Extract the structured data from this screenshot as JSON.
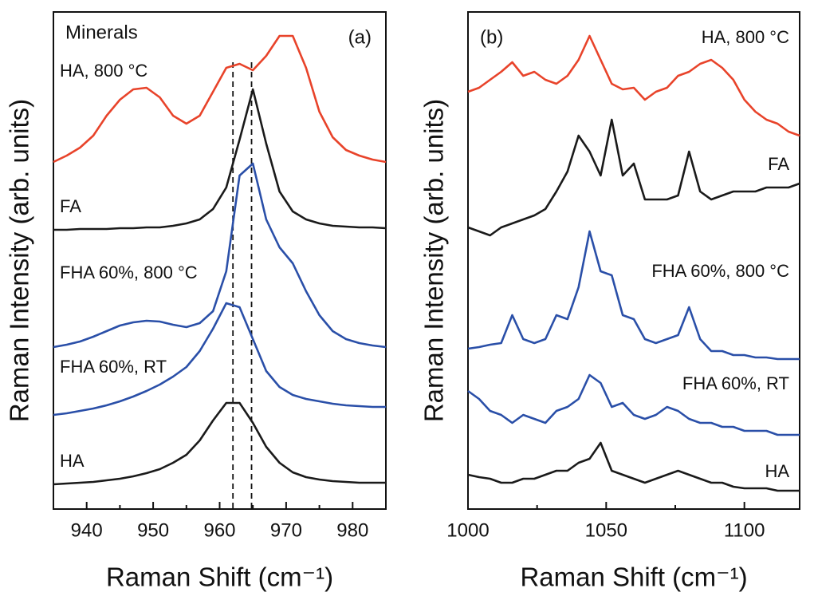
{
  "chart_data": [
    {
      "type": "line",
      "annotations": [
        "Minerals",
        "(a)"
      ],
      "x_label": "Raman Shift (cm⁻¹)",
      "y_label": "Raman Intensity (arb. units)",
      "x": [
        935,
        937,
        939,
        941,
        943,
        945,
        947,
        949,
        951,
        953,
        955,
        957,
        959,
        961,
        963,
        965,
        967,
        969,
        971,
        973,
        975,
        977,
        979,
        981,
        983,
        985
      ],
      "xlim": [
        935,
        985
      ],
      "xticks": [
        940,
        950,
        960,
        970,
        980
      ],
      "xticks_minor": [
        945,
        955,
        965,
        975
      ],
      "ylim": [
        0,
        623
      ],
      "vlines": [
        962,
        964.8
      ],
      "series": [
        {
          "name": "HA, 800 °C",
          "color": "#e8432a",
          "values": [
            435,
            443,
            453,
            468,
            493,
            513,
            526,
            528,
            516,
            493,
            483,
            493,
            523,
            553,
            558,
            550,
            568,
            593,
            593,
            553,
            498,
            466,
            450,
            443,
            438,
            435
          ]
        },
        {
          "name": "FA",
          "color": "#1a1a1a",
          "values": [
            350,
            350,
            351,
            351,
            351,
            352,
            352,
            353,
            353,
            355,
            358,
            363,
            376,
            403,
            463,
            526,
            458,
            398,
            373,
            363,
            358,
            355,
            354,
            353,
            353,
            352
          ]
        },
        {
          "name": "FHA 60%, 800 °C",
          "color": "#2a4fa8",
          "values": [
            203,
            206,
            210,
            216,
            223,
            230,
            234,
            236,
            235,
            231,
            228,
            233,
            248,
            298,
            418,
            433,
            363,
            328,
            308,
            273,
            243,
            223,
            213,
            208,
            205,
            203
          ]
        },
        {
          "name": "FHA 60%, RT",
          "color": "#2a4fa8",
          "values": [
            118,
            120,
            123,
            126,
            130,
            135,
            141,
            148,
            156,
            166,
            178,
            198,
            226,
            258,
            253,
            213,
            173,
            153,
            143,
            138,
            135,
            132,
            130,
            129,
            128,
            128
          ]
        },
        {
          "name": "HA",
          "color": "#1a1a1a",
          "values": [
            31,
            32,
            33,
            34,
            36,
            38,
            41,
            45,
            50,
            58,
            68,
            86,
            111,
            133,
            133,
            108,
            78,
            58,
            46,
            40,
            37,
            35,
            34,
            33,
            33,
            33
          ]
        }
      ]
    },
    {
      "type": "line",
      "annotations": [
        "(b)"
      ],
      "x_label": "Raman Shift (cm⁻¹)",
      "y_label": "Raman Intensity (arb. units)",
      "x": [
        1000,
        1004,
        1008,
        1012,
        1016,
        1020,
        1024,
        1028,
        1032,
        1036,
        1040,
        1044,
        1048,
        1052,
        1056,
        1060,
        1064,
        1068,
        1072,
        1076,
        1080,
        1084,
        1088,
        1092,
        1096,
        1100,
        1104,
        1108,
        1112,
        1116,
        1120
      ],
      "xlim": [
        1000,
        1120
      ],
      "xticks": [
        1000,
        1050,
        1100
      ],
      "xticks_minor": [
        1025,
        1075
      ],
      "ylim": [
        0,
        623
      ],
      "series": [
        {
          "name": "HA, 800 °C",
          "color": "#e8432a",
          "values": [
            523,
            528,
            538,
            548,
            560,
            543,
            548,
            538,
            533,
            543,
            563,
            593,
            563,
            533,
            526,
            528,
            513,
            523,
            528,
            543,
            548,
            558,
            563,
            553,
            538,
            513,
            498,
            488,
            483,
            473,
            468
          ]
        },
        {
          "name": "FA",
          "color": "#1a1a1a",
          "values": [
            353,
            348,
            343,
            353,
            358,
            363,
            368,
            376,
            398,
            423,
            468,
            448,
            418,
            488,
            418,
            433,
            388,
            388,
            388,
            393,
            448,
            398,
            388,
            393,
            398,
            398,
            398,
            403,
            403,
            403,
            408
          ]
        },
        {
          "name": "FHA 60%, 800 °C",
          "color": "#2a4fa8",
          "values": [
            201,
            203,
            206,
            208,
            243,
            213,
            208,
            213,
            243,
            238,
            278,
            348,
            298,
            293,
            243,
            238,
            213,
            208,
            213,
            218,
            253,
            213,
            198,
            198,
            193,
            193,
            190,
            190,
            188,
            188,
            188
          ]
        },
        {
          "name": "FHA 60%, RT",
          "color": "#2a4fa8",
          "values": [
            148,
            138,
            123,
            118,
            108,
            118,
            113,
            108,
            123,
            128,
            138,
            168,
            158,
            128,
            133,
            118,
            113,
            118,
            128,
            123,
            113,
            108,
            108,
            103,
            103,
            98,
            98,
            98,
            93,
            93,
            93
          ]
        },
        {
          "name": "HA",
          "color": "#1a1a1a",
          "values": [
            43,
            40,
            38,
            33,
            33,
            38,
            38,
            43,
            48,
            48,
            58,
            63,
            83,
            48,
            43,
            38,
            33,
            38,
            43,
            48,
            43,
            38,
            33,
            33,
            28,
            26,
            26,
            26,
            23,
            23,
            23
          ]
        }
      ]
    }
  ]
}
